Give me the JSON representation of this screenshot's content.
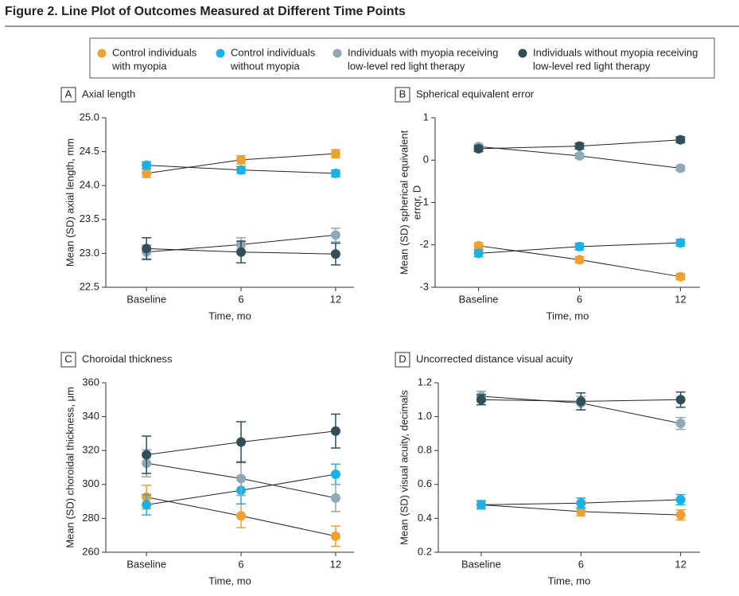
{
  "title": "Figure 2. Line Plot of Outcomes Measured at Different Time Points",
  "legend": [
    {
      "label": [
        "Control individuals",
        "with myopia"
      ],
      "color": "#f0a030"
    },
    {
      "label": [
        "Control individuals",
        "without myopia"
      ],
      "color": "#1ab0e8"
    },
    {
      "label": [
        "Individuals with myopia receiving",
        "low-level red light therapy"
      ],
      "color": "#8fa9b5"
    },
    {
      "label": [
        "Individuals without myopia receiving",
        "low-level red light therapy"
      ],
      "color": "#2f4f5a"
    }
  ],
  "chart_data": [
    {
      "type": "line",
      "panel": "A",
      "title": "Axial length",
      "xlabel": "Time, mo",
      "ylabel": [
        "Mean (SD) axial length, mm"
      ],
      "categories": [
        "Baseline",
        "6",
        "12"
      ],
      "ylim": [
        22.5,
        25
      ],
      "yticks": [
        22.5,
        {
          "value": 23,
          "label": "23.0"
        },
        23.5,
        {
          "value": 24,
          "label": "24.0"
        },
        24.5,
        {
          "value": 25,
          "label": "25.0"
        }
      ],
      "series": [
        {
          "values": [
            24.18,
            24.38,
            24.47
          ],
          "errors": [
            0.06,
            0.06,
            0.06
          ]
        },
        {
          "values": [
            24.3,
            24.23,
            24.18
          ],
          "errors": [
            0.05,
            0.05,
            0.05
          ]
        },
        {
          "values": [
            23.02,
            23.13,
            23.27
          ],
          "errors": [
            0.1,
            0.1,
            0.1
          ]
        },
        {
          "values": [
            23.07,
            23.02,
            22.99
          ],
          "errors": [
            0.16,
            0.16,
            0.16
          ]
        }
      ]
    },
    {
      "type": "line",
      "panel": "B",
      "title": "Spherical equivalent error",
      "xlabel": "Time, mo",
      "ylabel": [
        "Mean (SD) spherical equivalent",
        "error, D"
      ],
      "categories": [
        "Baseline",
        "6",
        "12"
      ],
      "ylim": [
        -3,
        1
      ],
      "yticks": [
        -3,
        -2,
        -1,
        0,
        1
      ],
      "series": [
        {
          "values": [
            -2.02,
            -2.35,
            -2.75
          ],
          "errors": [
            0.07,
            0.07,
            0.07
          ]
        },
        {
          "values": [
            -2.2,
            -2.04,
            -1.95
          ],
          "errors": [
            0.08,
            0.08,
            0.08
          ]
        },
        {
          "values": [
            0.32,
            0.1,
            -0.19
          ],
          "errors": [
            0.06,
            0.06,
            0.06
          ]
        },
        {
          "values": [
            0.27,
            0.33,
            0.48
          ],
          "errors": [
            0.07,
            0.07,
            0.07
          ]
        }
      ]
    },
    {
      "type": "line",
      "panel": "C",
      "title": "Choroidal thickness",
      "xlabel": "Time, mo",
      "ylabel": [
        "Mean (SD) choroidal thickness, μm"
      ],
      "categories": [
        "Baseline",
        "6",
        "12"
      ],
      "ylim": [
        260,
        360
      ],
      "yticks": [
        260,
        280,
        300,
        320,
        340,
        360
      ],
      "series": [
        {
          "values": [
            292.5,
            281.5,
            269.5
          ],
          "errors": [
            7,
            7,
            6
          ]
        },
        {
          "values": [
            288,
            296.5,
            306
          ],
          "errors": [
            6,
            8,
            6
          ]
        },
        {
          "values": [
            312.5,
            303.5,
            292
          ],
          "errors": [
            8,
            10,
            8
          ]
        },
        {
          "values": [
            317.5,
            325,
            331.5
          ],
          "errors": [
            11,
            12,
            10
          ]
        }
      ]
    },
    {
      "type": "line",
      "panel": "D",
      "title": "Uncorrected distance visual acuity",
      "xlabel": "Time, mo",
      "ylabel": [
        "Mean (SD) visual acuity, decimals"
      ],
      "categories": [
        "Baseline",
        "6",
        "12"
      ],
      "ylim": [
        0.2,
        1.2
      ],
      "yticks": [
        0.2,
        0.4,
        0.6,
        0.8,
        {
          "value": 1,
          "label": "1.0"
        },
        1.2
      ],
      "series": [
        {
          "values": [
            0.48,
            0.44,
            0.42
          ],
          "errors": [
            0.02,
            0.025,
            0.03
          ]
        },
        {
          "values": [
            0.48,
            0.49,
            0.51
          ],
          "errors": [
            0.025,
            0.03,
            0.03
          ]
        },
        {
          "values": [
            1.12,
            1.08,
            0.96
          ],
          "errors": [
            0.03,
            0.04,
            0.035
          ]
        },
        {
          "values": [
            1.1,
            1.09,
            1.1
          ],
          "errors": [
            0.03,
            0.05,
            0.045
          ]
        }
      ]
    }
  ]
}
